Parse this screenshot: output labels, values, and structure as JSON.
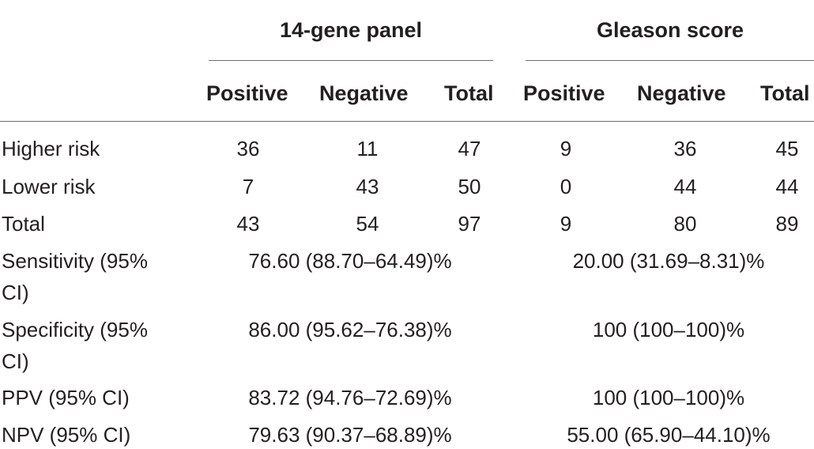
{
  "groups": [
    {
      "label": "14-gene panel"
    },
    {
      "label": "Gleason score"
    }
  ],
  "columns": [
    "Positive",
    "Negative",
    "Total",
    "Positive",
    "Negative",
    "Total"
  ],
  "rows": [
    {
      "label": "Higher risk",
      "values": [
        "36",
        "11",
        "47",
        "9",
        "36",
        "45"
      ]
    },
    {
      "label": "Lower risk",
      "values": [
        "7",
        "43",
        "50",
        "0",
        "44",
        "44"
      ]
    },
    {
      "label": "Total",
      "values": [
        "43",
        "54",
        "97",
        "9",
        "80",
        "89"
      ]
    }
  ],
  "metrics": [
    {
      "label_line1": "Sensitivity (95%",
      "label_line2": "CI)",
      "panel": "76.60 (88.70–64.49)%",
      "gleason": "20.00 (31.69–8.31)%"
    },
    {
      "label_line1": "Specificity (95%",
      "label_line2": "CI)",
      "panel": "86.00 (95.62–76.38)%",
      "gleason": "100 (100–100)%"
    },
    {
      "label_line1": "PPV (95% CI)",
      "panel": "83.72 (94.76–72.69)%",
      "gleason": "100 (100–100)%"
    },
    {
      "label_line1": "NPV (95% CI)",
      "panel": "79.63 (90.37–68.89)%",
      "gleason": "55.00 (65.90–44.10)%"
    }
  ]
}
